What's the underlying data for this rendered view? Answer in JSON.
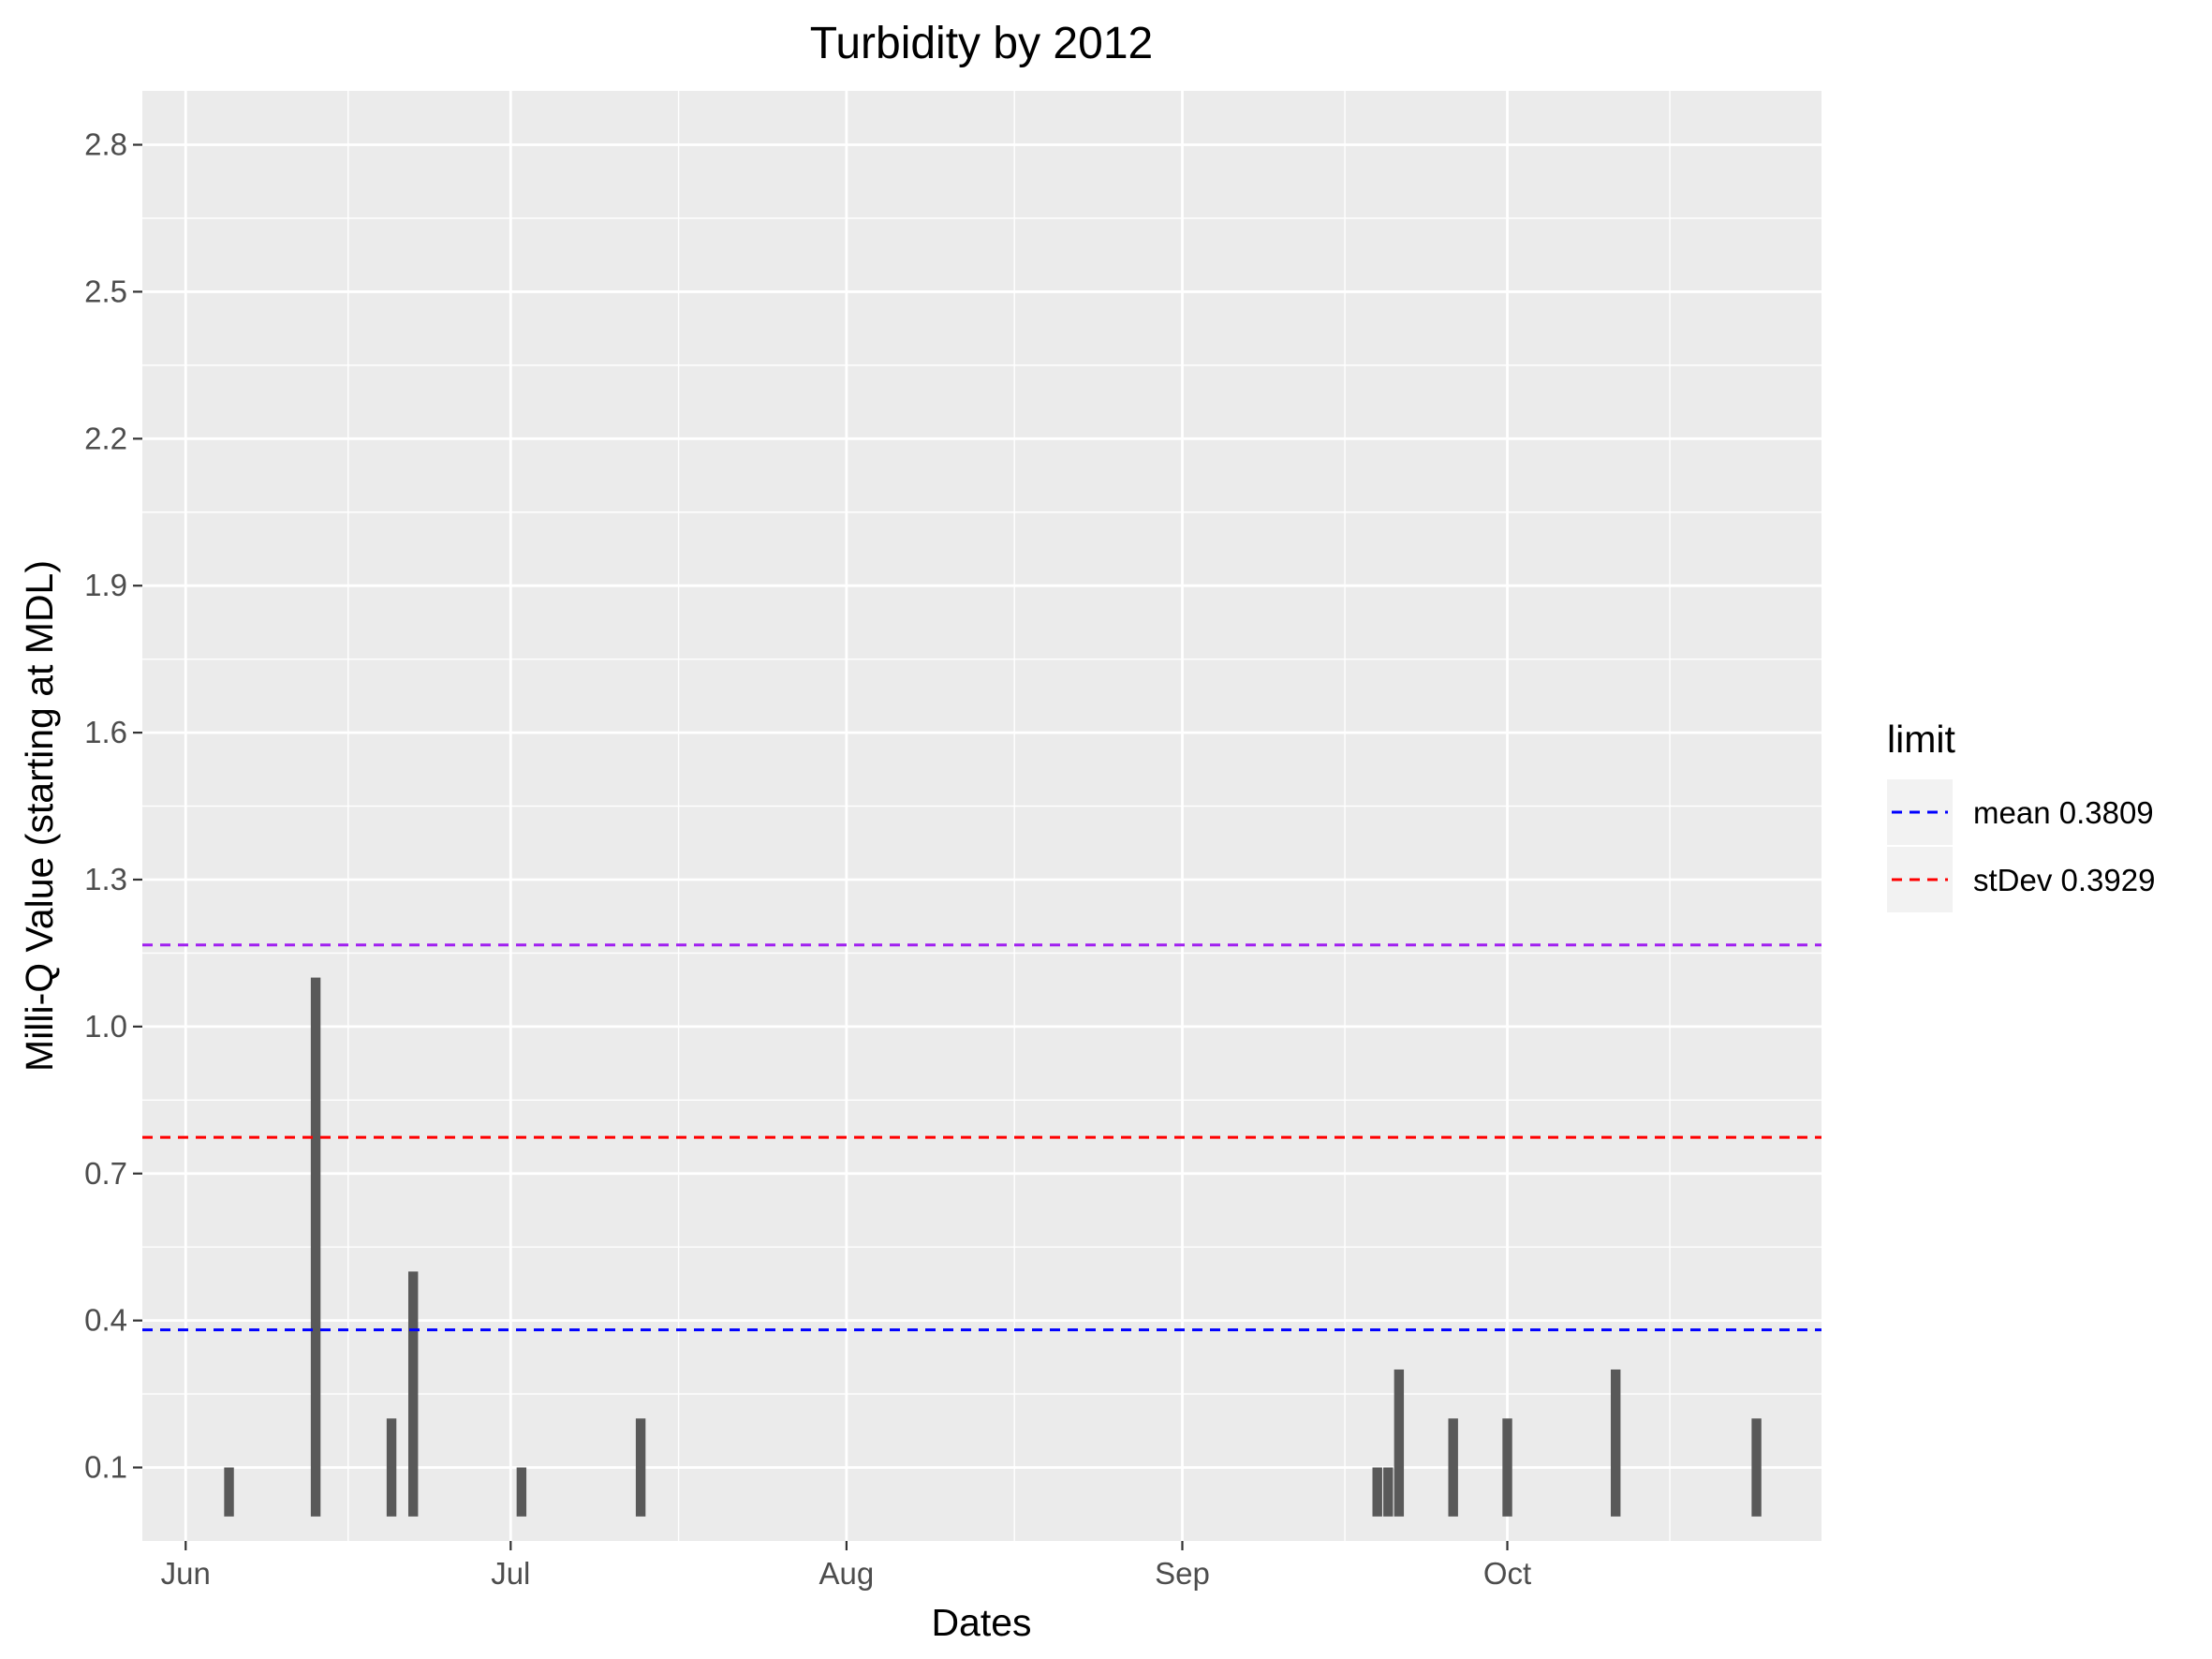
{
  "chart_data": {
    "type": "bar",
    "title": "Turbidity by 2012",
    "xlabel": "Dates",
    "ylabel": "Milli-Q Value (starting at MDL)",
    "x_axis": {
      "type": "date",
      "range": [
        "2012-05-28",
        "2012-10-30"
      ],
      "ticks": [
        {
          "date": "2012-06-01",
          "label": "Jun"
        },
        {
          "date": "2012-07-01",
          "label": "Jul"
        },
        {
          "date": "2012-08-01",
          "label": "Aug"
        },
        {
          "date": "2012-09-01",
          "label": "Sep"
        },
        {
          "date": "2012-10-01",
          "label": "Oct"
        }
      ]
    },
    "y_axis": {
      "range": [
        -0.05,
        2.91
      ],
      "baseline": 0.0,
      "ticks": [
        0.1,
        0.4,
        0.7,
        1.0,
        1.3,
        1.6,
        1.9,
        2.2,
        2.5,
        2.8
      ],
      "tick_labels": [
        "0.1",
        "0.4",
        "0.7",
        "1.0",
        "1.3",
        "1.6",
        "1.9",
        "2.2",
        "2.5",
        "2.8"
      ]
    },
    "bars": [
      {
        "date": "2012-06-05",
        "value": 0.1
      },
      {
        "date": "2012-06-13",
        "value": 1.1
      },
      {
        "date": "2012-06-20",
        "value": 0.2
      },
      {
        "date": "2012-06-22",
        "value": 0.5
      },
      {
        "date": "2012-07-02",
        "value": 0.1
      },
      {
        "date": "2012-07-13",
        "value": 0.2
      },
      {
        "date": "2012-09-19",
        "value": 0.1
      },
      {
        "date": "2012-09-20",
        "value": 0.1
      },
      {
        "date": "2012-09-21",
        "value": 0.3
      },
      {
        "date": "2012-09-26",
        "value": 0.2
      },
      {
        "date": "2012-10-01",
        "value": 0.2
      },
      {
        "date": "2012-10-11",
        "value": 0.3
      },
      {
        "date": "2012-10-24",
        "value": 0.2
      }
    ],
    "reference_lines": [
      {
        "value": 0.3809,
        "color": "#0000ff",
        "label": "mean 0.3809",
        "in_legend": true
      },
      {
        "value": 0.7738,
        "color": "#ff0000",
        "label": "stDev 0.3929",
        "in_legend": true
      },
      {
        "value": 1.1667,
        "color": "#a020f0",
        "label": "",
        "in_legend": false
      }
    ],
    "bar_color": "#595959",
    "panel_background": "#ebebeb",
    "grid": true,
    "legend": {
      "title": "limit",
      "position": "right"
    }
  }
}
